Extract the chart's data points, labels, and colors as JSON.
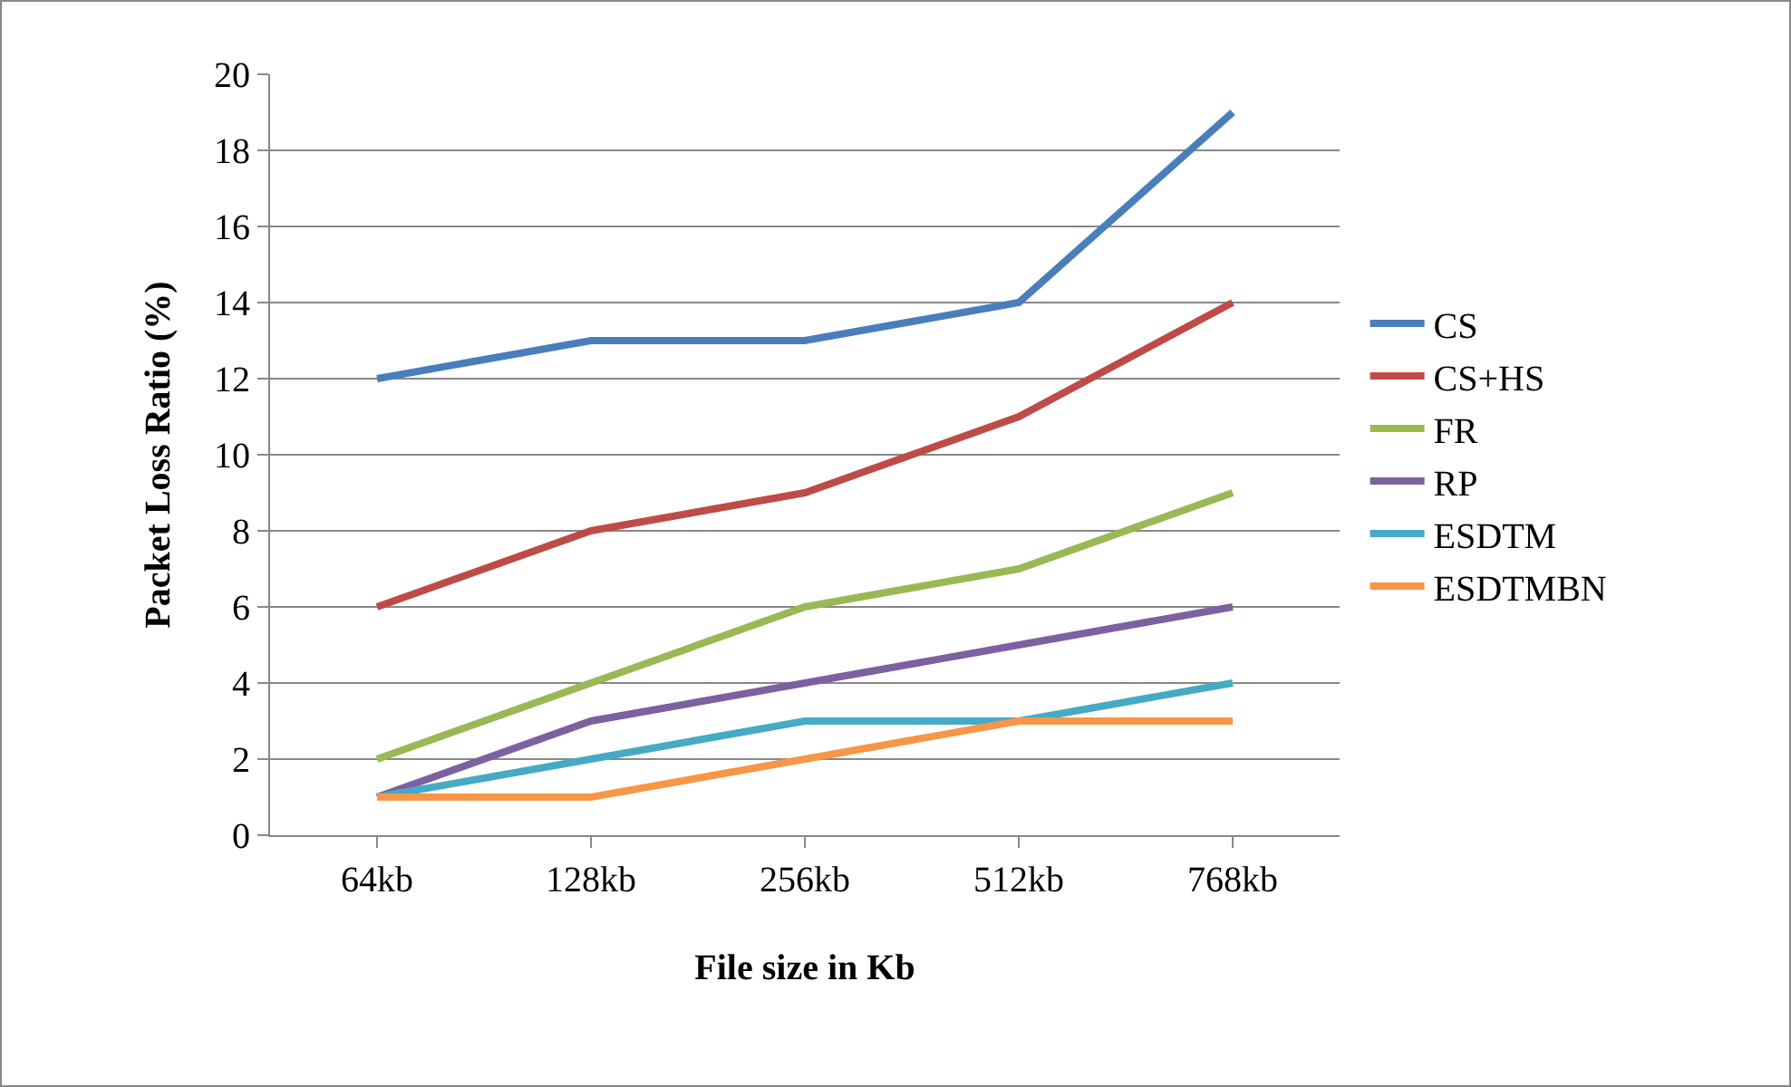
{
  "chart_data": {
    "type": "line",
    "xlabel": "File size in Kb",
    "ylabel": "Packet Loss Ratio (%)",
    "categories": [
      "64kb",
      "128kb",
      "256kb",
      "512kb",
      "768kb"
    ],
    "series": [
      {
        "name": "CS",
        "color": "#4a7ebb",
        "values": [
          12,
          13,
          13,
          14,
          19
        ]
      },
      {
        "name": "CS+HS",
        "color": "#be4b48",
        "values": [
          6,
          8,
          9,
          11,
          14
        ]
      },
      {
        "name": "FR",
        "color": "#98b954",
        "values": [
          2,
          4,
          6,
          7,
          9
        ]
      },
      {
        "name": "RP",
        "color": "#7d60a0",
        "values": [
          1,
          3,
          4,
          5,
          6
        ]
      },
      {
        "name": "ESDTM",
        "color": "#46aac5",
        "values": [
          1,
          2,
          3,
          3,
          4
        ]
      },
      {
        "name": "ESDTMBN",
        "color": "#f79646",
        "values": [
          1,
          1,
          2,
          3,
          3
        ]
      }
    ],
    "ylim": [
      0,
      20
    ],
    "yticks": [
      0,
      2,
      4,
      6,
      8,
      10,
      12,
      14,
      16,
      18,
      20
    ],
    "grid": "y",
    "legend": "right",
    "marker": "none",
    "line_style": "solid"
  }
}
